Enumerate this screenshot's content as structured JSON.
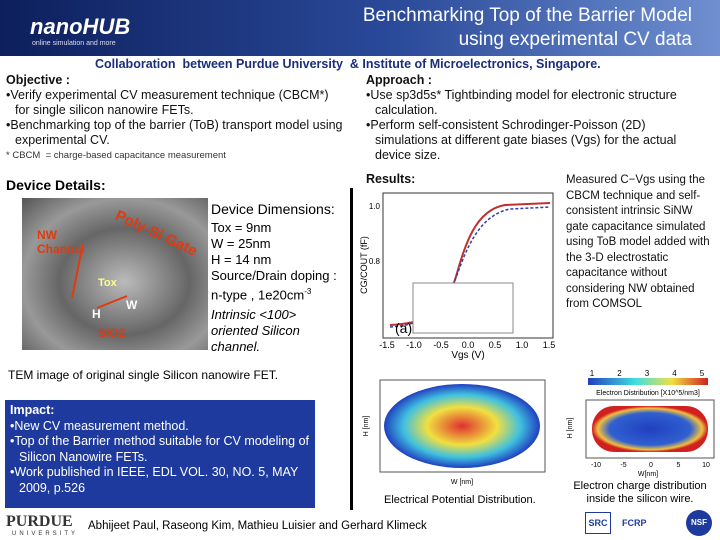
{
  "header": {
    "logo": "nanoHUB",
    "logo_sub": "online simulation and more",
    "title_lines": [
      "Benchmarking Top of the Barrier Model",
      "using experimental CV data"
    ]
  },
  "collaboration": "Collaboration  between Purdue University  & Institute of Microelectronics, Singapore.",
  "objective": {
    "heading": "Objective :",
    "items": [
      "Verify experimental CV measurement technique (CBCM*) for single silicon nanowire FETs.",
      "Benchmarking  top of the barrier (ToB) transport model using experimental CV."
    ],
    "footnote": "* CBCM  = charge-based capacitance measurement"
  },
  "approach": {
    "heading": "Approach :",
    "items": [
      "Use sp3d5s* Tightbinding model for electronic structure calculation.",
      "Perform self-consistent Schrodinger-Poisson (2D) simulations at different gate biases (Vgs) for the actual device size."
    ]
  },
  "results": {
    "heading": "Results:",
    "note": "Measured C−Vgs using the CBCM technique and self-consistent intrinsic SiNW gate capacitance simulated using ToB model added with the 3-D electrostatic capacitance without considering NW obtained from COMSOL"
  },
  "device": {
    "heading": "Device Details:",
    "dims_heading": "Device Dimensions:",
    "dims": [
      "Tox = 9nm",
      "W = 25nm",
      "H  = 14 nm",
      "Source/Drain doping :"
    ],
    "doping": "n-type , 1e20cm",
    "doping_sup": "-3",
    "orientation": "Intrinsic <100> oriented Silicon channel.",
    "tem_labels": {
      "channel": "NW Channel",
      "gate": "Poly-Si Gate",
      "tox": "Tox",
      "h": "H",
      "w": "W",
      "oxide": "SiO2"
    },
    "caption": "TEM image of original single Silicon nanowire FET."
  },
  "cv_plot": {
    "y_label": "CG/COUT (fF)",
    "x_label": "Vgs (V)",
    "panel": "(a)",
    "xticks": [
      "-1.5",
      "-1.0",
      "-0.5",
      "0.0",
      "0.5",
      "1.0",
      "1.5"
    ],
    "yticks": [
      "1.0",
      "0.8"
    ]
  },
  "impact": {
    "heading": "Impact:",
    "items": [
      "New CV measurement method.",
      "Top of the Barrier method suitable for CV modeling of Silicon Nanowire FETs.",
      "Work published in IEEE, EDL VOL. 30, NO. 5, MAY 2009, p.526"
    ]
  },
  "potential": {
    "caption": "Electrical Potential Distribution.",
    "x_label": "W [nm]",
    "y_label": "H [nm]"
  },
  "charge": {
    "title": "Electron Distribution [X10^5/nm3]",
    "colorbar": [
      "1",
      "2",
      "3",
      "4",
      "5"
    ],
    "x_label": "W[nm]",
    "y_label": "H [nm]",
    "xticks": [
      "-10",
      "-5",
      "0",
      "5",
      "10"
    ],
    "caption": "Electron charge distribution inside the silicon wire."
  },
  "authors": "Abhijeet Paul, Raseong Kim, Mathieu Luisier and Gerhard Klimeck",
  "footer": {
    "purdue": "PURDUE",
    "university": "UNIVERSITY",
    "src": "SRC",
    "fcrp": "FCRP",
    "nsf": "NSF"
  }
}
